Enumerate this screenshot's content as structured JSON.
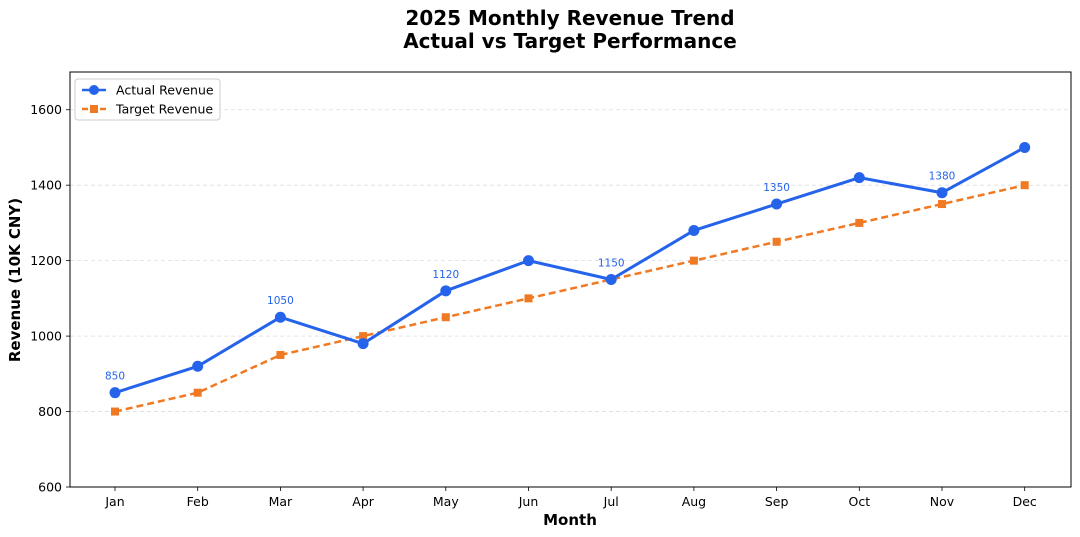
{
  "chart_data": {
    "type": "line",
    "title": [
      "2025 Monthly Revenue Trend",
      "Actual vs Target Performance"
    ],
    "xlabel": "Month",
    "ylabel": "Revenue (10K CNY)",
    "categories": [
      "Jan",
      "Feb",
      "Mar",
      "Apr",
      "May",
      "Jun",
      "Jul",
      "Aug",
      "Sep",
      "Oct",
      "Nov",
      "Dec"
    ],
    "ylim": [
      600,
      1700
    ],
    "yticks": [
      600,
      800,
      1000,
      1200,
      1400,
      1600
    ],
    "grid": "horizontal dashed",
    "legend_position": "top-left",
    "series": [
      {
        "name": "Actual Revenue",
        "color": "#2563EB",
        "style": "solid",
        "marker": "circle",
        "values": [
          850,
          920,
          1050,
          980,
          1120,
          1200,
          1150,
          1280,
          1350,
          1420,
          1380,
          1500
        ]
      },
      {
        "name": "Target Revenue",
        "color": "#F07A24",
        "style": "dashed",
        "marker": "square",
        "values": [
          800,
          850,
          950,
          1000,
          1050,
          1100,
          1150,
          1200,
          1250,
          1300,
          1350,
          1400
        ]
      }
    ],
    "annotations": [
      {
        "category": "Jan",
        "text": "850"
      },
      {
        "category": "Mar",
        "text": "1050"
      },
      {
        "category": "May",
        "text": "1120"
      },
      {
        "category": "Jul",
        "text": "1150"
      },
      {
        "category": "Sep",
        "text": "1350"
      },
      {
        "category": "Nov",
        "text": "1380"
      }
    ]
  }
}
